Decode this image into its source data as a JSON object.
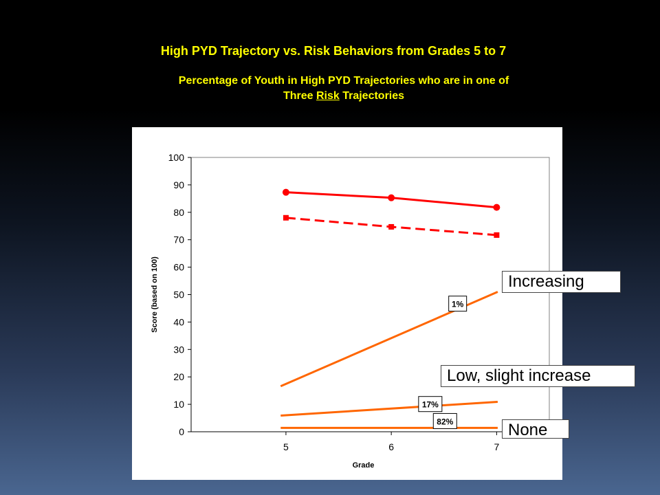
{
  "slide": {
    "title": "High PYD Trajectory vs. Risk Behaviors from Grades 5 to 7",
    "subtitle_line1": "Percentage of Youth in High PYD Trajectories who are in one of",
    "subtitle_line2_pre": "Three ",
    "subtitle_line2_risk": "Risk",
    "subtitle_line2_post": " Trajectories"
  },
  "callouts": {
    "increasing": "Increasing",
    "low_slight_increase": "Low, slight increase",
    "none": "None"
  },
  "chart_data": {
    "type": "line",
    "xlabel": "Grade",
    "ylabel": "Score (based on 100)",
    "x": [
      5,
      6,
      7
    ],
    "xlim": [
      4.1,
      7.5
    ],
    "ylim": [
      0,
      100
    ],
    "yticks": [
      0,
      10,
      20,
      30,
      40,
      50,
      60,
      70,
      80,
      90,
      100
    ],
    "grid": false,
    "series": [
      {
        "x": [
          5,
          6,
          7
        ],
        "values": [
          87.3,
          85.3,
          81.8
        ],
        "color": "#ff0000",
        "dash": false,
        "marker": "circle"
      },
      {
        "x": [
          5,
          6,
          7
        ],
        "values": [
          78,
          74.7,
          71.7
        ],
        "color": "#ff0000",
        "dash": true,
        "marker": "square"
      },
      {
        "x": [
          4.95,
          7.01
        ],
        "values": [
          16.6,
          51
        ],
        "color": "#ff6600",
        "dash": false,
        "marker": "none",
        "label": "1%"
      },
      {
        "x": [
          4.95,
          7.01
        ],
        "values": [
          5.9,
          10.9
        ],
        "color": "#ff6600",
        "dash": false,
        "marker": "none",
        "label": "17%"
      },
      {
        "x": [
          4.95,
          7.01
        ],
        "values": [
          1.4,
          1.4
        ],
        "color": "#ff6600",
        "dash": false,
        "marker": "none",
        "label": "82%"
      }
    ]
  }
}
